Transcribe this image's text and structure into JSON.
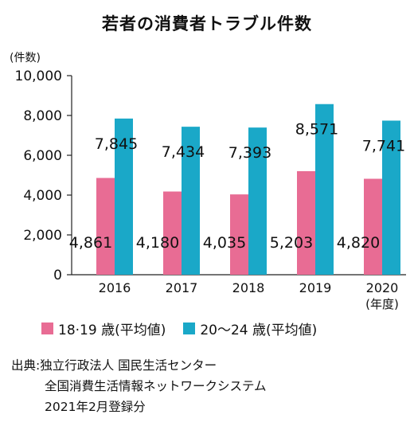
{
  "title": "若者の消費者トラブル件数",
  "unit_label": "(件数)",
  "chart_data": {
    "type": "bar",
    "categories": [
      "2016",
      "2017",
      "2018",
      "2019",
      "2020"
    ],
    "category_sublabels": [
      "",
      "",
      "",
      "",
      "(年度)"
    ],
    "series": [
      {
        "name": "18·19 歳(平均値)",
        "color": "#e86c94",
        "values": [
          4861,
          4180,
          4035,
          5203,
          4820
        ],
        "labels": [
          "4,861",
          "4,180",
          "4,035",
          "5,203",
          "4,820"
        ]
      },
      {
        "name": "20〜24 歳(平均値)",
        "color": "#1aa8c8",
        "values": [
          7845,
          7434,
          7393,
          8571,
          7741
        ],
        "labels": [
          "7,845",
          "7,434",
          "7,393",
          "8,571",
          "7,741"
        ]
      }
    ],
    "yticks": [
      "0",
      "2,000",
      "4,000",
      "6,000",
      "8,000",
      "10,000"
    ],
    "ylim": [
      0,
      10000
    ],
    "legend_position": "bottom"
  },
  "legend": {
    "item1": "18·19 歳(平均値)",
    "item2": "20〜24 歳(平均値)",
    "color1": "#e86c94",
    "color2": "#1aa8c8"
  },
  "source": {
    "line1": "出典:独立行政法人 国民生活センター",
    "line2": "全国消費生活情報ネットワークシステム",
    "line3": "2021年2月登録分"
  }
}
